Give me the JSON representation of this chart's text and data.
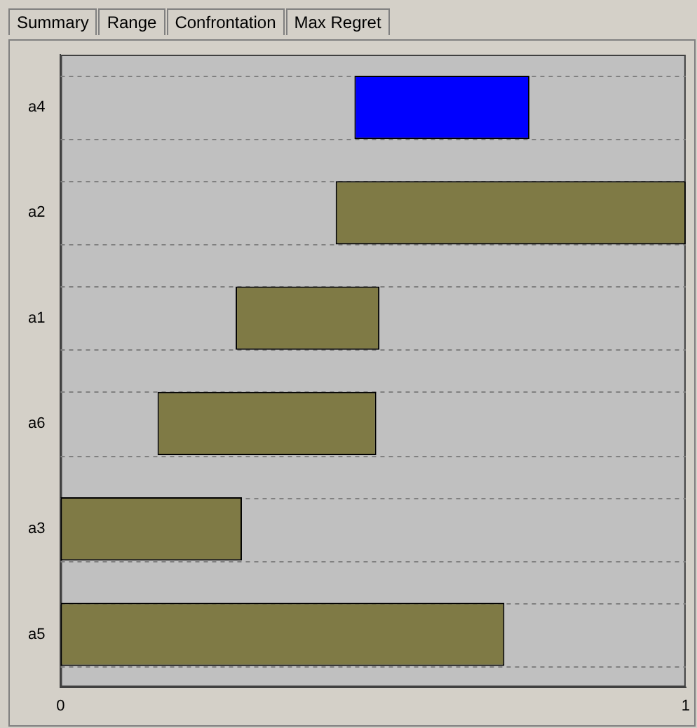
{
  "chart_data": {
    "type": "bar",
    "orientation": "horizontal",
    "annotations": [
      "Summary",
      "Range",
      "Confrontation",
      "Max Regret"
    ],
    "categories": [
      "a4",
      "a2",
      "a1",
      "a6",
      "a3",
      "a5"
    ],
    "values": [
      0.28,
      0.56,
      0.23,
      0.35,
      0.29,
      0.71
    ],
    "base": [
      0.47,
      0.44,
      0.28,
      0.155,
      0,
      0
    ],
    "colors": [
      "#0000ff",
      "#7f7a45",
      "#7f7a45",
      "#7f7a45",
      "#7f7a45",
      "#7f7a45"
    ],
    "xlim": [
      0,
      1
    ],
    "xticks": [
      0,
      1
    ],
    "grid": "y",
    "legend": false
  }
}
